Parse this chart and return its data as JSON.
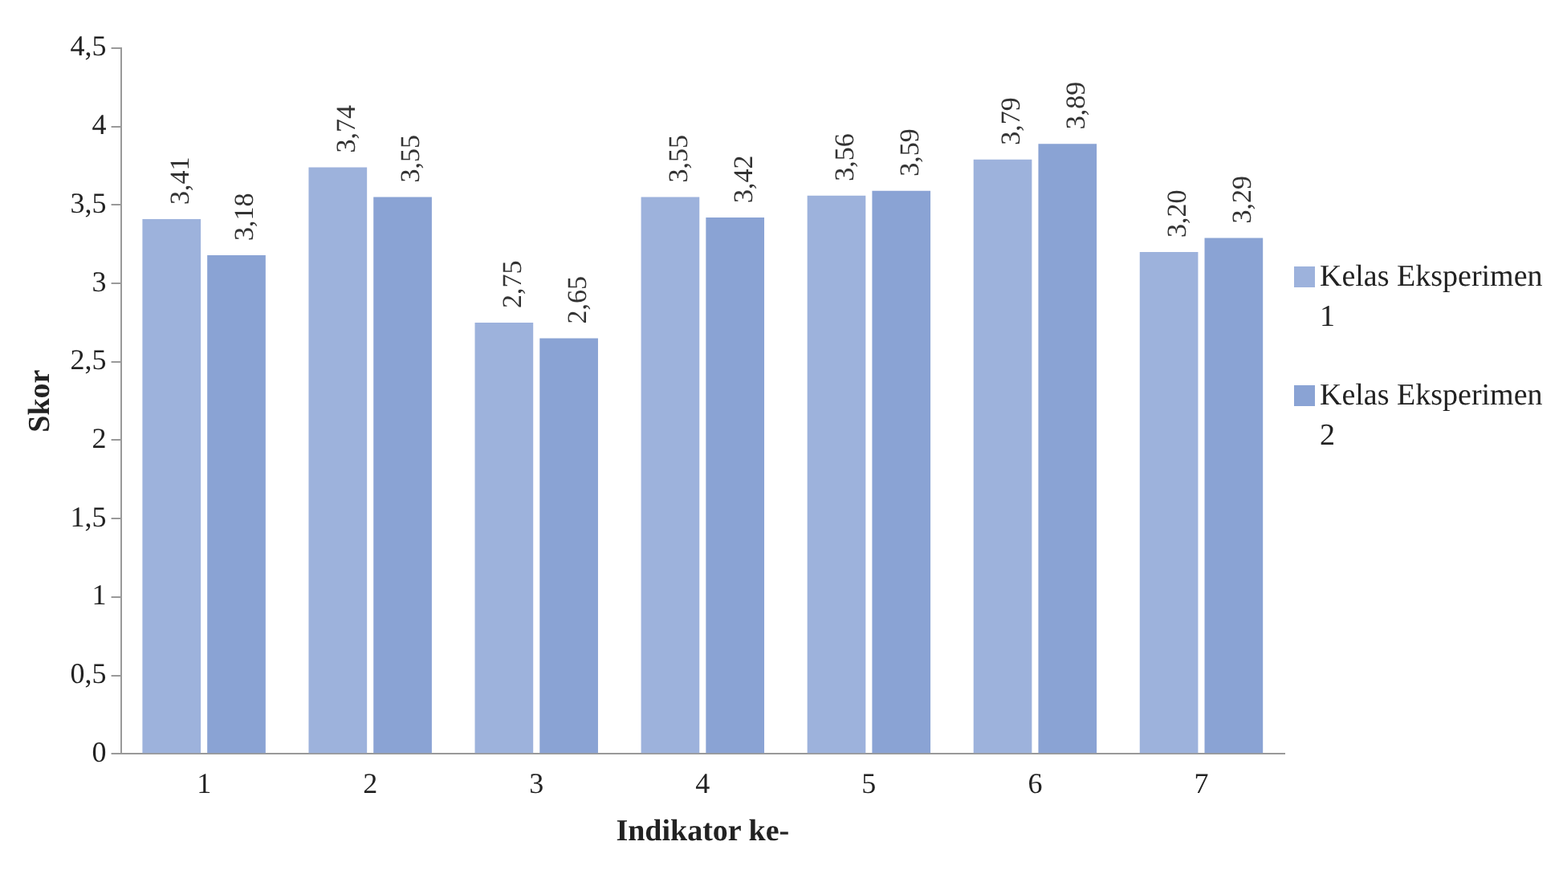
{
  "chart_data": {
    "type": "bar",
    "xlabel": "Indikator ke-",
    "ylabel": "Skor",
    "categories": [
      "1",
      "2",
      "3",
      "4",
      "5",
      "6",
      "7"
    ],
    "series": [
      {
        "name": "Kelas Eksperimen 1",
        "color": "#9db2dc",
        "values": [
          3.41,
          3.74,
          2.75,
          3.55,
          3.56,
          3.79,
          3.2
        ],
        "value_labels": [
          "3,41",
          "3,74",
          "2,75",
          "3,55",
          "3,56",
          "3,79",
          "3,20"
        ]
      },
      {
        "name": "Kelas Eksperimen 2",
        "color": "#8aa3d4",
        "values": [
          3.18,
          3.55,
          2.65,
          3.42,
          3.59,
          3.89,
          3.29
        ],
        "value_labels": [
          "3,18",
          "3,55",
          "2,65",
          "3,42",
          "3,59",
          "3,89",
          "3,29"
        ]
      }
    ],
    "ylim": [
      0,
      4.5
    ],
    "yticks": [
      {
        "value": 0,
        "label": "0"
      },
      {
        "value": 0.5,
        "label": "0,5"
      },
      {
        "value": 1,
        "label": "1"
      },
      {
        "value": 1.5,
        "label": "1,5"
      },
      {
        "value": 2,
        "label": "2"
      },
      {
        "value": 2.5,
        "label": "2,5"
      },
      {
        "value": 3,
        "label": "3"
      },
      {
        "value": 3.5,
        "label": "3,5"
      },
      {
        "value": 4,
        "label": "4"
      },
      {
        "value": 4.5,
        "label": "4,5"
      }
    ],
    "grid": false,
    "legend": "right"
  }
}
